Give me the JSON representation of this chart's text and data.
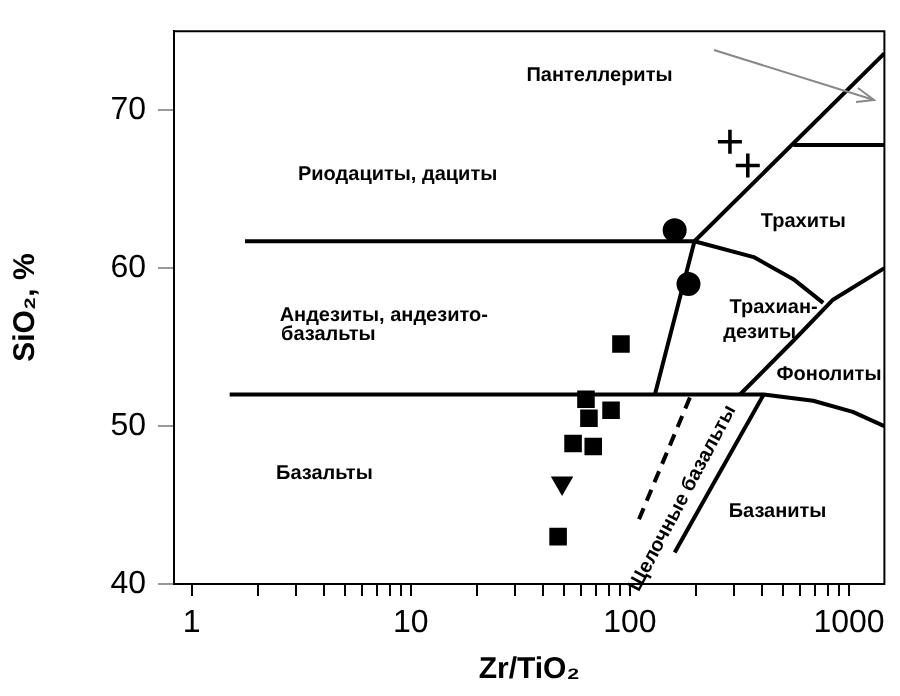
{
  "chart_data": {
    "type": "scatter",
    "xlabel": "Zr/TiO₂",
    "ylabel": "SiO₂, %",
    "log": "x",
    "grid": false,
    "legend": false,
    "xlim": [
      0.83,
      1450
    ],
    "ylim": [
      40,
      75
    ],
    "xticks": [
      1,
      {
        "value": 2,
        "label": null
      },
      {
        "value": 3,
        "label": null
      },
      {
        "value": 4,
        "label": null
      },
      {
        "value": 5,
        "label": null
      },
      {
        "value": 6,
        "label": null
      },
      {
        "value": 7,
        "label": null
      },
      {
        "value": 8,
        "label": null
      },
      {
        "value": 9,
        "label": null
      },
      10,
      {
        "value": 20,
        "label": null
      },
      {
        "value": 30,
        "label": null
      },
      {
        "value": 40,
        "label": null
      },
      {
        "value": 50,
        "label": null
      },
      {
        "value": 60,
        "label": null
      },
      {
        "value": 70,
        "label": null
      },
      {
        "value": 80,
        "label": null
      },
      {
        "value": 90,
        "label": null
      },
      100,
      {
        "value": 200,
        "label": null
      },
      {
        "value": 300,
        "label": null
      },
      {
        "value": 400,
        "label": null
      },
      {
        "value": 500,
        "label": null
      },
      {
        "value": 600,
        "label": null
      },
      {
        "value": 700,
        "label": null
      },
      {
        "value": 800,
        "label": null
      },
      {
        "value": 900,
        "label": null
      },
      1000
    ],
    "yticks": [
      40,
      50,
      60,
      70
    ],
    "series": [
      {
        "type": "scatter",
        "marker": "cross",
        "color": "#000000",
        "x": [
          286,
          345
        ],
        "values": [
          68,
          66.5
        ]
      },
      {
        "type": "scatter",
        "marker": "circle",
        "color": "#000000",
        "x": [
          160,
          185
        ],
        "values": [
          62.4,
          59
        ]
      },
      {
        "type": "scatter",
        "marker": "square",
        "color": "#000000",
        "x": [
          91,
          63,
          65,
          82,
          55,
          68,
          47
        ],
        "values": [
          55.2,
          51.7,
          50.5,
          51,
          48.9,
          48.7,
          43
        ]
      },
      {
        "type": "scatter",
        "marker": "triangle",
        "color": "#000000",
        "x": [
          49
        ],
        "values": [
          46.4
        ]
      },
      {
        "type": "line",
        "marker": "none",
        "color": "#000000",
        "x": [
          1.75,
          197,
          367,
          557,
          762
        ],
        "values": [
          61.7,
          61.7,
          60.7,
          59.3,
          57.8
        ]
      },
      {
        "type": "line",
        "marker": "none",
        "color": "#000000",
        "x": [
          1.49,
          408,
          686,
          1040,
          1450
        ],
        "values": [
          52,
          52,
          51.6,
          50.9,
          50
        ]
      },
      {
        "type": "line",
        "marker": "none",
        "color": "#000000",
        "x": [
          130,
          197,
          1450
        ],
        "values": [
          52,
          61.7,
          73.6
        ]
      },
      {
        "type": "line",
        "marker": "none",
        "color": "#000000",
        "x": [
          557,
          1450
        ],
        "values": [
          67.8,
          67.8
        ]
      },
      {
        "type": "line",
        "marker": "none",
        "color": "#000000",
        "x": [
          318,
          557,
          845,
          1450
        ],
        "values": [
          52,
          55.4,
          58,
          60
        ]
      },
      {
        "type": "line",
        "marker": "none",
        "color": "#000000",
        "x": [
          160,
          408
        ],
        "values": [
          42,
          52
        ]
      },
      {
        "type": "line",
        "marker": "none",
        "line_style": "dashed",
        "color": "#000000",
        "x": [
          110,
          189
        ],
        "values": [
          44.1,
          51.9
        ]
      }
    ],
    "annotations": [
      "Пантеллериты",
      "Риодациты, дациты",
      "Трахиты",
      "Андезиты, андезито-",
      "базальты",
      "Трахиан-",
      "дезиты",
      "Фонолиты",
      "Базальты",
      "Щелочные базальты",
      "Базаниты"
    ]
  }
}
